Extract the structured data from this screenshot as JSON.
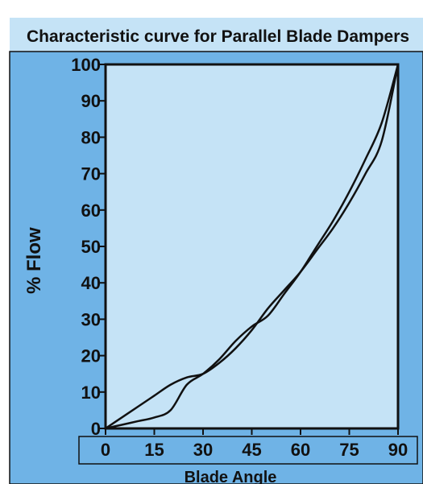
{
  "chart_data": {
    "type": "line",
    "title": "Characteristic curve for Parallel Blade Dampers",
    "xlabel": "Blade Angle",
    "ylabel": "% Flow",
    "xlim": [
      0,
      90
    ],
    "ylim": [
      0,
      100
    ],
    "x_ticks": [
      "0",
      "15",
      "30",
      "45",
      "60",
      "75",
      "90"
    ],
    "y_ticks": [
      "0",
      "10",
      "20",
      "30",
      "40",
      "50",
      "60",
      "70",
      "80",
      "90",
      "100"
    ],
    "grid": false,
    "series": [
      {
        "x": [
          0,
          5,
          10,
          15,
          20,
          25,
          30,
          35,
          40,
          45,
          50,
          55,
          60,
          65,
          70,
          75,
          80,
          85,
          90
        ],
        "values": [
          0,
          3,
          6,
          9,
          12,
          14,
          15,
          18,
          22,
          27,
          33,
          38,
          43,
          49,
          55,
          62,
          70,
          79,
          100
        ]
      },
      {
        "x": [
          0,
          5,
          10,
          15,
          20,
          25,
          30,
          35,
          40,
          45,
          50,
          55,
          60,
          65,
          70,
          75,
          80,
          85,
          90
        ],
        "values": [
          0,
          1,
          2,
          3,
          5,
          12,
          15,
          19,
          24,
          28,
          31,
          37,
          43,
          50,
          57,
          65,
          74,
          84,
          100
        ]
      }
    ],
    "colors": {
      "outer_bg": "#6fb3e6",
      "plot_bg": "#c5e3f6",
      "line": "#111111"
    }
  }
}
